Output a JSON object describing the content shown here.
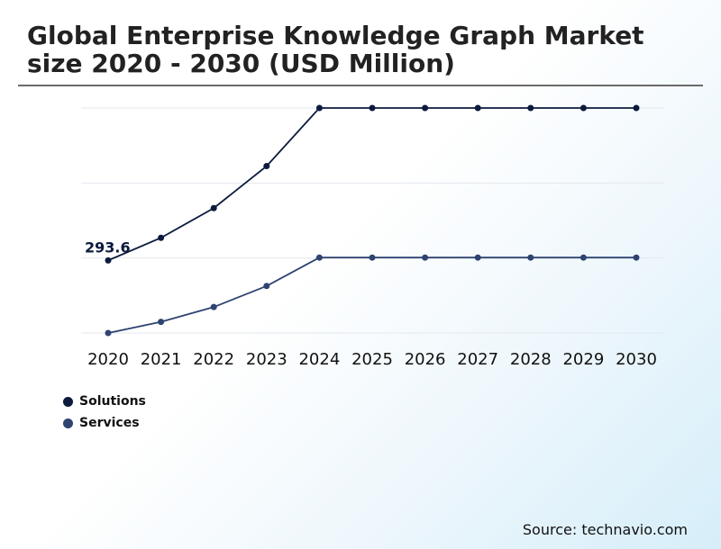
{
  "header": {
    "title": "Global Enterprise Knowledge Graph Market size 2020 - 2030 (USD Million)"
  },
  "chart_data": {
    "type": "line",
    "title": "Global Enterprise Knowledge Graph Market size 2020 - 2030 (USD Million)",
    "categories": [
      "2020",
      "2021",
      "2022",
      "2023",
      "2024",
      "2025",
      "2026",
      "2027",
      "2028",
      "2029",
      "2030"
    ],
    "series": [
      {
        "name": "Solutions",
        "color": "#0b1a3d",
        "values": [
          293.6,
          385,
          505,
          675,
          910,
          910,
          910,
          910,
          910,
          910,
          910
        ]
      },
      {
        "name": "Services",
        "color": "#2e4370",
        "values": [
          0,
          45,
          105,
          190,
          305,
          305,
          305,
          305,
          305,
          305,
          305
        ]
      }
    ],
    "annotations": [
      {
        "series": "Solutions",
        "category": "2020",
        "label": "293.6"
      }
    ],
    "ylim": [
      0,
      910
    ],
    "gridlines": [
      0,
      303.3,
      606.7,
      910
    ],
    "legend_position": "bottom-left",
    "xlabel": "",
    "ylabel": ""
  },
  "legend": {
    "items": [
      {
        "label": "Solutions",
        "color": "#0b1a3d"
      },
      {
        "label": "Services",
        "color": "#2e4370"
      }
    ]
  },
  "footer": {
    "source": "Source: technavio.com"
  }
}
